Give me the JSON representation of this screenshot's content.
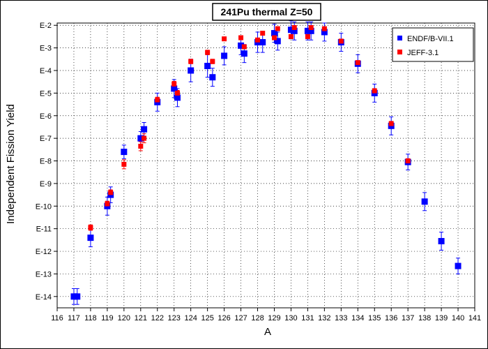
{
  "chart_data": {
    "type": "scatter",
    "title": "241Pu thermal Z=50",
    "xlabel": "A",
    "ylabel": "Independent Fission Yield",
    "xlim": [
      116,
      141
    ],
    "ylim_exponent": [
      -14.5,
      -1.9
    ],
    "y_scale": "log",
    "x_ticks": [
      "116",
      "117",
      "118",
      "119",
      "120",
      "121",
      "122",
      "123",
      "124",
      "125",
      "126",
      "127",
      "128",
      "129",
      "130",
      "131",
      "132",
      "133",
      "134",
      "135",
      "136",
      "137",
      "138",
      "139",
      "140",
      "141"
    ],
    "y_ticks": [
      {
        "exp": -2,
        "label": "E-2"
      },
      {
        "exp": -3,
        "label": "E-3"
      },
      {
        "exp": -4,
        "label": "E-4"
      },
      {
        "exp": -5,
        "label": "E-5"
      },
      {
        "exp": -6,
        "label": "E-6"
      },
      {
        "exp": -7,
        "label": "E-7"
      },
      {
        "exp": -8,
        "label": "E-8"
      },
      {
        "exp": -9,
        "label": "E-9"
      },
      {
        "exp": -10,
        "label": "E-10"
      },
      {
        "exp": -11,
        "label": "E-11"
      },
      {
        "exp": -12,
        "label": "E-12"
      },
      {
        "exp": -13,
        "label": "E-13"
      },
      {
        "exp": -14,
        "label": "E-14"
      }
    ],
    "grid": true,
    "legend_position": "top-right",
    "series": [
      {
        "name": "ENDF/B-VII.1",
        "color": "#0000ff",
        "marker": "square",
        "points": [
          {
            "x": 117.0,
            "y": -14.0,
            "err": 0.35
          },
          {
            "x": 117.2,
            "y": -14.0,
            "err": 0.35
          },
          {
            "x": 118.0,
            "y": -11.4,
            "err": 0.4
          },
          {
            "x": 119.0,
            "y": -10.0,
            "err": 0.4
          },
          {
            "x": 119.2,
            "y": -9.5,
            "err": 0.35
          },
          {
            "x": 120.0,
            "y": -7.6,
            "err": 0.3
          },
          {
            "x": 121.0,
            "y": -7.0,
            "err": 0.3
          },
          {
            "x": 121.2,
            "y": -6.6,
            "err": 0.3
          },
          {
            "x": 122.0,
            "y": -5.4,
            "err": 0.4
          },
          {
            "x": 123.0,
            "y": -4.8,
            "err": 0.4
          },
          {
            "x": 123.2,
            "y": -5.2,
            "err": 0.4
          },
          {
            "x": 124.0,
            "y": -4.0,
            "err": 0.5
          },
          {
            "x": 125.0,
            "y": -3.8,
            "err": 0.5
          },
          {
            "x": 125.3,
            "y": -4.3,
            "err": 0.4
          },
          {
            "x": 126.0,
            "y": -3.35,
            "err": 0.4
          },
          {
            "x": 127.0,
            "y": -2.9,
            "err": 0.4
          },
          {
            "x": 127.2,
            "y": -3.25,
            "err": 0.4
          },
          {
            "x": 128.0,
            "y": -2.75,
            "err": 0.45
          },
          {
            "x": 128.3,
            "y": -2.75,
            "err": 0.45
          },
          {
            "x": 129.0,
            "y": -2.35,
            "err": 0.4
          },
          {
            "x": 129.2,
            "y": -2.7,
            "err": 0.4
          },
          {
            "x": 130.0,
            "y": -2.2,
            "err": 0.4
          },
          {
            "x": 130.2,
            "y": -2.25,
            "err": 0.4
          },
          {
            "x": 131.0,
            "y": -2.25,
            "err": 0.4
          },
          {
            "x": 131.2,
            "y": -2.25,
            "err": 0.4
          },
          {
            "x": 132.0,
            "y": -2.3,
            "err": 0.4
          },
          {
            "x": 133.0,
            "y": -2.75,
            "err": 0.4
          },
          {
            "x": 134.0,
            "y": -3.7,
            "err": 0.4
          },
          {
            "x": 135.0,
            "y": -5.0,
            "err": 0.4
          },
          {
            "x": 136.0,
            "y": -6.45,
            "err": 0.4
          },
          {
            "x": 137.0,
            "y": -8.05,
            "err": 0.35
          },
          {
            "x": 138.0,
            "y": -9.8,
            "err": 0.4
          },
          {
            "x": 139.0,
            "y": -11.55,
            "err": 0.4
          },
          {
            "x": 140.0,
            "y": -12.65,
            "err": 0.35
          }
        ]
      },
      {
        "name": "JEFF-3.1",
        "color": "#ff0000",
        "marker": "square",
        "points": [
          {
            "x": 118.0,
            "y": -10.95,
            "err": 0.12
          },
          {
            "x": 119.0,
            "y": -9.9,
            "err": 0.12
          },
          {
            "x": 119.2,
            "y": -9.4,
            "err": 0.12
          },
          {
            "x": 120.0,
            "y": -8.15,
            "err": 0.2
          },
          {
            "x": 121.0,
            "y": -7.35,
            "err": 0.2
          },
          {
            "x": 121.2,
            "y": -7.0,
            "err": 0.2
          },
          {
            "x": 122.0,
            "y": -5.3,
            "err": 0.12
          },
          {
            "x": 123.0,
            "y": -4.6,
            "err": 0.12
          },
          {
            "x": 123.2,
            "y": -5.0,
            "err": 0.12
          },
          {
            "x": 124.0,
            "y": -3.6,
            "err": 0.1
          },
          {
            "x": 125.0,
            "y": -3.2,
            "err": 0.1
          },
          {
            "x": 125.3,
            "y": -3.6,
            "err": 0.1
          },
          {
            "x": 126.0,
            "y": -2.6,
            "err": 0.08
          },
          {
            "x": 127.0,
            "y": -2.55,
            "err": 0.08
          },
          {
            "x": 127.2,
            "y": -2.95,
            "err": 0.08
          },
          {
            "x": 128.0,
            "y": -2.65,
            "err": 0.08
          },
          {
            "x": 128.3,
            "y": -2.35,
            "err": 0.08
          },
          {
            "x": 129.0,
            "y": -2.55,
            "err": 0.08
          },
          {
            "x": 129.2,
            "y": -2.15,
            "err": 0.08
          },
          {
            "x": 130.0,
            "y": -2.5,
            "err": 0.08
          },
          {
            "x": 130.2,
            "y": -2.1,
            "err": 0.08
          },
          {
            "x": 131.0,
            "y": -2.5,
            "err": 0.08
          },
          {
            "x": 131.2,
            "y": -2.1,
            "err": 0.08
          },
          {
            "x": 132.0,
            "y": -2.15,
            "err": 0.08
          },
          {
            "x": 133.0,
            "y": -2.7,
            "err": 0.08
          },
          {
            "x": 134.0,
            "y": -3.65,
            "err": 0.08
          },
          {
            "x": 135.0,
            "y": -4.9,
            "err": 0.1
          },
          {
            "x": 136.0,
            "y": -6.35,
            "err": 0.1
          },
          {
            "x": 137.0,
            "y": -8.0,
            "err": 0.1
          }
        ]
      }
    ]
  }
}
